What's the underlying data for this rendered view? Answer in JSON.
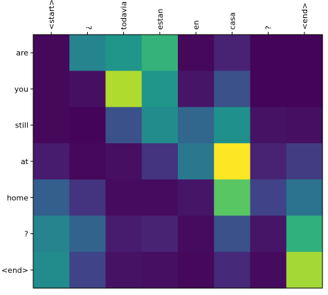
{
  "chart_data": {
    "type": "heatmap",
    "title": "",
    "xlabel": "",
    "ylabel": "",
    "colormap": "viridis",
    "x_labels": [
      "<start>",
      "¿",
      "todavia",
      "estan",
      "en",
      "casa",
      "?",
      "<end>"
    ],
    "y_labels": [
      "are",
      "you",
      "still",
      "at",
      "home",
      "?",
      "<end>"
    ],
    "values": [
      [
        0.02,
        0.45,
        0.52,
        0.65,
        0.02,
        0.1,
        0.01,
        0.01
      ],
      [
        0.02,
        0.04,
        0.88,
        0.52,
        0.06,
        0.25,
        0.01,
        0.01
      ],
      [
        0.02,
        0.01,
        0.25,
        0.48,
        0.33,
        0.5,
        0.05,
        0.04
      ],
      [
        0.08,
        0.02,
        0.04,
        0.15,
        0.4,
        1.0,
        0.1,
        0.18
      ],
      [
        0.3,
        0.15,
        0.03,
        0.03,
        0.06,
        0.74,
        0.2,
        0.38
      ],
      [
        0.45,
        0.32,
        0.08,
        0.1,
        0.03,
        0.25,
        0.06,
        0.64
      ],
      [
        0.48,
        0.2,
        0.05,
        0.04,
        0.02,
        0.12,
        0.03,
        0.86
      ]
    ],
    "grid": false,
    "legend": "none"
  }
}
